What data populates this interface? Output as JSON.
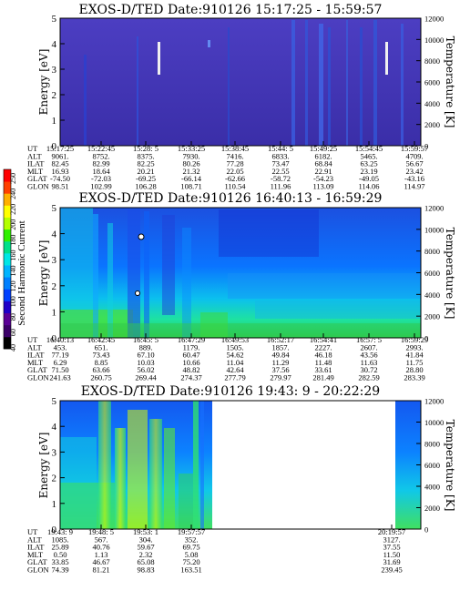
{
  "colorbar": {
    "label": "Second Harmonic Current",
    "ticks": [
      "40",
      "60",
      "80",
      "100",
      "120",
      "140",
      "160",
      "180",
      "200",
      "220",
      "240",
      "250"
    ],
    "colors": [
      "#000000",
      "#3b0068",
      "#5a0096",
      "#1e00c8",
      "#0040ff",
      "#0080ff",
      "#00b4ff",
      "#00e6e6",
      "#00e08a",
      "#30f000",
      "#b4ff00",
      "#ffff00",
      "#ffb000",
      "#ff4000",
      "#ff0000"
    ]
  },
  "chart_data": [
    {
      "type": "heatmap",
      "title": "EXOS-D/TED   Date:910126  15:17:25 - 15:59:57",
      "ylabel": "Energy [eV]",
      "ylabel_right": "Temperature [K]",
      "ylim": [
        0,
        5
      ],
      "ylim_right": [
        0,
        12000
      ],
      "yticks": [
        "0",
        "1",
        "2",
        "3",
        "4",
        "5"
      ],
      "yticks_right": [
        "0",
        "2000",
        "4000",
        "6000",
        "8000",
        "10000",
        "12000"
      ],
      "table_labels": [
        "UT",
        "ALT",
        "ILAT",
        "MLT",
        "GLAT",
        "GLON"
      ],
      "columns": [
        [
          "15:17:25",
          "9061.",
          "82.45",
          "16.93",
          "-74.50",
          "98.51"
        ],
        [
          "15:22:45",
          "8752.",
          "82.99",
          "18.64",
          "-72.03",
          "102.99"
        ],
        [
          "15:28: 5",
          "8375.",
          "82.25",
          "20.21",
          "-69.25",
          "106.28"
        ],
        [
          "15:33:25",
          "7930.",
          "80.26",
          "21.32",
          "-66.14",
          "108.71"
        ],
        [
          "15:38:45",
          "7416.",
          "77.28",
          "22.05",
          "-62.66",
          "110.54"
        ],
        [
          "15:44: 5",
          "6833.",
          "73.47",
          "22.55",
          "-58.72",
          "111.96"
        ],
        [
          "15:49:25",
          "6182.",
          "68.84",
          "22.91",
          "-54.23",
          "113.09"
        ],
        [
          "15:54:45",
          "5465.",
          "63.25",
          "23.19",
          "-49.05",
          "114.06"
        ],
        [
          "15:59:57",
          "4709.",
          "56.67",
          "23.42",
          "-43.16",
          "114.97"
        ]
      ]
    },
    {
      "type": "heatmap",
      "title": "EXOS-D/TED   Date:910126  16:40:13 - 16:59:29",
      "ylabel": "Energy [eV]",
      "ylabel_right": "Temperature [K]",
      "ylim": [
        0,
        5
      ],
      "ylim_right": [
        0,
        12000
      ],
      "yticks": [
        "0",
        "1",
        "2",
        "3",
        "4",
        "5"
      ],
      "yticks_right": [
        "0",
        "2000",
        "4000",
        "6000",
        "8000",
        "10000",
        "12000"
      ],
      "table_labels": [
        "UT",
        "ALT",
        "ILAT",
        "MLT",
        "GLAT",
        "GLON"
      ],
      "columns": [
        [
          "16:40:13",
          "453.",
          "77.19",
          "6.29",
          "71.50",
          "241.63"
        ],
        [
          "16:42:45",
          "651.",
          "73.43",
          "8.85",
          "63.66",
          "260.75"
        ],
        [
          "16:45: 5",
          "889.",
          "67.10",
          "10.03",
          "56.02",
          "269.44"
        ],
        [
          "16:47:29",
          "1179.",
          "60.47",
          "10.66",
          "48.82",
          "274.37"
        ],
        [
          "16:49:53",
          "1505.",
          "54.62",
          "11.04",
          "42.64",
          "277.79"
        ],
        [
          "16:52:17",
          "1857.",
          "49.84",
          "11.29",
          "37.56",
          "279.97"
        ],
        [
          "16:54:41",
          "2227.",
          "46.18",
          "11.48",
          "33.61",
          "281.49"
        ],
        [
          "16:57: 5",
          "2607.",
          "43.56",
          "11.63",
          "30.72",
          "282.59"
        ],
        [
          "16:59:29",
          "2993.",
          "41.84",
          "11.75",
          "28.80",
          "283.39"
        ]
      ]
    },
    {
      "type": "heatmap",
      "title": "EXOS-D/TED   Date:910126  19:43: 9 - 20:22:29",
      "ylabel": "Energy [eV]",
      "ylabel_right": "Temperature [K]",
      "ylim": [
        0,
        5
      ],
      "ylim_right": [
        0,
        12000
      ],
      "yticks": [
        "0",
        "1",
        "2",
        "3",
        "4",
        "5"
      ],
      "yticks_right": [
        "0",
        "2000",
        "4000",
        "6000",
        "8000",
        "10000",
        "12000"
      ],
      "table_labels": [
        "UT",
        "ALT",
        "ILAT",
        "MLT",
        "GLAT",
        "GLON"
      ],
      "columns": [
        [
          "19:43: 9",
          "1085.",
          "25.89",
          "0.50",
          "33.85",
          "74.39"
        ],
        [
          "19:48: 5",
          "567.",
          "40.76",
          "1.13",
          "46.67",
          "81.21"
        ],
        [
          "19:53: 1",
          "304.",
          "59.67",
          "2.32",
          "65.08",
          "98.83"
        ],
        [
          "19:57:57",
          "352.",
          "69.75",
          "5.08",
          "75.20",
          "163.51"
        ],
        [
          "20:19:57",
          "3127.",
          "37.55",
          "11.50",
          "31.69",
          "239.45"
        ]
      ]
    }
  ]
}
